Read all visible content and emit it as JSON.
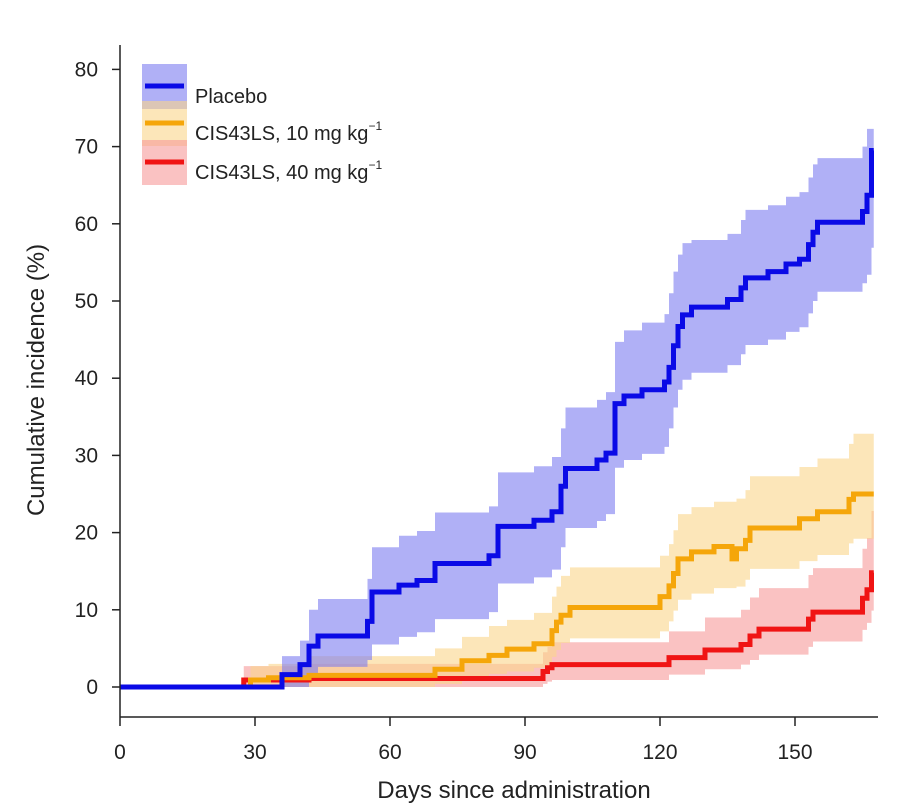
{
  "chart_data": {
    "type": "line",
    "subtype": "step",
    "title": "",
    "xlabel": "Days since administration",
    "ylabel": "Cumulative incidence (%)",
    "xlim": [
      0,
      170
    ],
    "ylim": [
      -4,
      83
    ],
    "xticks": [
      0,
      30,
      60,
      90,
      120,
      150
    ],
    "yticks": [
      0,
      10,
      20,
      30,
      40,
      50,
      60,
      70,
      80
    ],
    "legend_position": "top-left",
    "legend": [
      {
        "key": "placebo",
        "label": "Placebo",
        "sup": ""
      },
      {
        "key": "cis10",
        "label": "CIS43LS, 10 mg kg",
        "sup": "−1"
      },
      {
        "key": "cis40",
        "label": "CIS43LS, 40 mg kg",
        "sup": "−1"
      }
    ],
    "series": [
      {
        "key": "placebo",
        "name": "Placebo",
        "color": "#0a0ae6",
        "band_color": "#7c7cf0",
        "points": [
          [
            0,
            0
          ],
          [
            30,
            0
          ],
          [
            33,
            0
          ],
          [
            36,
            1.6
          ],
          [
            40,
            2.9
          ],
          [
            42,
            5.3
          ],
          [
            44,
            6.6
          ],
          [
            50,
            6.6
          ],
          [
            55,
            8.5
          ],
          [
            56,
            12.3
          ],
          [
            62,
            13.2
          ],
          [
            66,
            13.8
          ],
          [
            70,
            16
          ],
          [
            80,
            16
          ],
          [
            82,
            17
          ],
          [
            84,
            20.8
          ],
          [
            92,
            21.6
          ],
          [
            96,
            22.7
          ],
          [
            98,
            26
          ],
          [
            99,
            28.3
          ],
          [
            104,
            28.3
          ],
          [
            106,
            29.4
          ],
          [
            108,
            30.3
          ],
          [
            110,
            36.7
          ],
          [
            112,
            37.7
          ],
          [
            116,
            38.5
          ],
          [
            121,
            39.5
          ],
          [
            122,
            41.4
          ],
          [
            123,
            44.2
          ],
          [
            124,
            46.7
          ],
          [
            125,
            48.2
          ],
          [
            127,
            49.2
          ],
          [
            135,
            50.2
          ],
          [
            138,
            51.7
          ],
          [
            139,
            53
          ],
          [
            144,
            53.8
          ],
          [
            148,
            54.8
          ],
          [
            151,
            55.4
          ],
          [
            153,
            57.3
          ],
          [
            154,
            58.9
          ],
          [
            155,
            60.2
          ],
          [
            165,
            61.6
          ],
          [
            166,
            63.7
          ],
          [
            167,
            69.5
          ],
          [
            167.5,
            69.5
          ]
        ],
        "band": [
          [
            0,
            0,
            0
          ],
          [
            33,
            0,
            0
          ],
          [
            36,
            0,
            4
          ],
          [
            40,
            0,
            6
          ],
          [
            42,
            1.5,
            10
          ],
          [
            44,
            2.6,
            11.4
          ],
          [
            50,
            2.6,
            11.4
          ],
          [
            55,
            3.5,
            14
          ],
          [
            56,
            5.5,
            18.1
          ],
          [
            62,
            6.5,
            19.6
          ],
          [
            66,
            7.1,
            20.2
          ],
          [
            70,
            8.8,
            22.6
          ],
          [
            80,
            8.8,
            22.6
          ],
          [
            82,
            9.7,
            23.4
          ],
          [
            84,
            13.4,
            27.8
          ],
          [
            92,
            14.2,
            28.6
          ],
          [
            96,
            15.2,
            29.8
          ],
          [
            98,
            18.1,
            33.5
          ],
          [
            99,
            20.6,
            36.2
          ],
          [
            104,
            20.6,
            36.2
          ],
          [
            106,
            21.5,
            37.2
          ],
          [
            108,
            22.4,
            38.2
          ],
          [
            110,
            28.4,
            44.7
          ],
          [
            112,
            29.4,
            46.2
          ],
          [
            116,
            30.2,
            47.2
          ],
          [
            121,
            31.1,
            48.3
          ],
          [
            122,
            33.5,
            51
          ],
          [
            123,
            36.2,
            53.8
          ],
          [
            124,
            38.5,
            56
          ],
          [
            125,
            39.8,
            57.5
          ],
          [
            127,
            40.7,
            57.9
          ],
          [
            135,
            41.7,
            58.7
          ],
          [
            138,
            43.1,
            60.5
          ],
          [
            139,
            44.3,
            61.8
          ],
          [
            144,
            45,
            62.4
          ],
          [
            148,
            46,
            63.5
          ],
          [
            151,
            46.6,
            64.1
          ],
          [
            153,
            48.4,
            66
          ],
          [
            154,
            50,
            67.7
          ],
          [
            155,
            51.2,
            68.5
          ],
          [
            165,
            52.3,
            70
          ],
          [
            166,
            53.4,
            72.3
          ],
          [
            167,
            56.9,
            72.3
          ],
          [
            167.5,
            56.9,
            72.3
          ]
        ]
      },
      {
        "key": "cis10",
        "name": "CIS43LS, 10 mg kg−1",
        "color": "#f5a60a",
        "band_color": "#fad68a",
        "points": [
          [
            0,
            0
          ],
          [
            27,
            0
          ],
          [
            29,
            0.9
          ],
          [
            33,
            1.2
          ],
          [
            40,
            1.2
          ],
          [
            42,
            1.5
          ],
          [
            60,
            1.5
          ],
          [
            70,
            2.3
          ],
          [
            75,
            2.3
          ],
          [
            76,
            3.4
          ],
          [
            80,
            3.4
          ],
          [
            82,
            4.1
          ],
          [
            86,
            4.9
          ],
          [
            88,
            4.9
          ],
          [
            90,
            4.9
          ],
          [
            92,
            5.6
          ],
          [
            95,
            5.6
          ],
          [
            96,
            7.3
          ],
          [
            97,
            8.4
          ],
          [
            98,
            9.3
          ],
          [
            100,
            10.3
          ],
          [
            110,
            10.3
          ],
          [
            114,
            10.3
          ],
          [
            119,
            10.3
          ],
          [
            120,
            11.7
          ],
          [
            122,
            13.1
          ],
          [
            123,
            14.7
          ],
          [
            124,
            16.6
          ],
          [
            127,
            17.5
          ],
          [
            132,
            18.2
          ],
          [
            136,
            16.6
          ],
          [
            137,
            17.9
          ],
          [
            139,
            19
          ],
          [
            140,
            20.6
          ],
          [
            150,
            20.6
          ],
          [
            151,
            21.8
          ],
          [
            155,
            22.7
          ],
          [
            162,
            24.3
          ],
          [
            163,
            25
          ],
          [
            167,
            25
          ],
          [
            167.5,
            25
          ]
        ],
        "band": [
          [
            0,
            0,
            0
          ],
          [
            27,
            0,
            0
          ],
          [
            29,
            0,
            2.7
          ],
          [
            33,
            0,
            3
          ],
          [
            42,
            0,
            4
          ],
          [
            60,
            0,
            4
          ],
          [
            70,
            0.4,
            5
          ],
          [
            76,
            0.9,
            6.5
          ],
          [
            82,
            1.7,
            7.9
          ],
          [
            86,
            2,
            8.7
          ],
          [
            92,
            2.5,
            9.6
          ],
          [
            96,
            3.9,
            11.7
          ],
          [
            97,
            4.8,
            13
          ],
          [
            98,
            5.7,
            14.4
          ],
          [
            100,
            6.3,
            15.5
          ],
          [
            119,
            6.3,
            15.5
          ],
          [
            120,
            7.2,
            17
          ],
          [
            122,
            8.5,
            18.5
          ],
          [
            123,
            9.9,
            20.3
          ],
          [
            124,
            11.3,
            22.4
          ],
          [
            127,
            12.1,
            23.3
          ],
          [
            132,
            12.8,
            24
          ],
          [
            137,
            13,
            24.4
          ],
          [
            139,
            13.9,
            25.5
          ],
          [
            140,
            15.3,
            27.3
          ],
          [
            150,
            15.3,
            27.3
          ],
          [
            151,
            16.3,
            28.5
          ],
          [
            155,
            17.1,
            29.6
          ],
          [
            162,
            18.6,
            31.5
          ],
          [
            163,
            19.2,
            32.8
          ],
          [
            167,
            19.2,
            32.8
          ],
          [
            167.5,
            19.2,
            32.8
          ]
        ]
      },
      {
        "key": "cis40",
        "name": "CIS43LS, 40 mg kg−1",
        "color": "#f01414",
        "band_color": "#f79a9a",
        "points": [
          [
            0,
            0
          ],
          [
            27,
            0
          ],
          [
            27.5,
            0.9
          ],
          [
            33,
            0.9
          ],
          [
            40,
            0.9
          ],
          [
            42,
            1.1
          ],
          [
            80,
            1.1
          ],
          [
            93,
            1.1
          ],
          [
            94,
            2
          ],
          [
            95,
            2.5
          ],
          [
            96,
            2.9
          ],
          [
            110,
            2.9
          ],
          [
            120,
            2.9
          ],
          [
            122,
            3.8
          ],
          [
            127,
            3.8
          ],
          [
            130,
            4.8
          ],
          [
            135,
            4.8
          ],
          [
            138,
            5.5
          ],
          [
            140,
            6.6
          ],
          [
            142,
            7.5
          ],
          [
            152,
            7.5
          ],
          [
            153,
            8.8
          ],
          [
            154,
            9.7
          ],
          [
            164,
            9.7
          ],
          [
            165,
            11.5
          ],
          [
            166,
            12.6
          ],
          [
            167,
            14.8
          ],
          [
            167.5,
            14.8
          ]
        ],
        "band": [
          [
            0,
            0,
            0
          ],
          [
            27,
            0,
            0
          ],
          [
            27.5,
            0,
            2.7
          ],
          [
            42,
            0,
            3
          ],
          [
            80,
            0,
            3
          ],
          [
            93,
            0,
            3
          ],
          [
            94,
            0.4,
            4.5
          ],
          [
            95,
            0.7,
            5.2
          ],
          [
            96,
            0.9,
            5.8
          ],
          [
            120,
            0.9,
            5.8
          ],
          [
            122,
            1.6,
            7.2
          ],
          [
            127,
            1.6,
            7.2
          ],
          [
            130,
            2.3,
            9
          ],
          [
            138,
            2.9,
            10
          ],
          [
            140,
            3.5,
            11.6
          ],
          [
            142,
            4.2,
            12.8
          ],
          [
            152,
            4.2,
            12.8
          ],
          [
            153,
            5.2,
            14.5
          ],
          [
            154,
            5.9,
            15.4
          ],
          [
            164,
            5.9,
            15.4
          ],
          [
            165,
            7.4,
            17.9
          ],
          [
            166,
            8.3,
            19.3
          ],
          [
            167,
            9.9,
            22.8
          ],
          [
            167.5,
            9.9,
            22.8
          ]
        ]
      }
    ]
  }
}
